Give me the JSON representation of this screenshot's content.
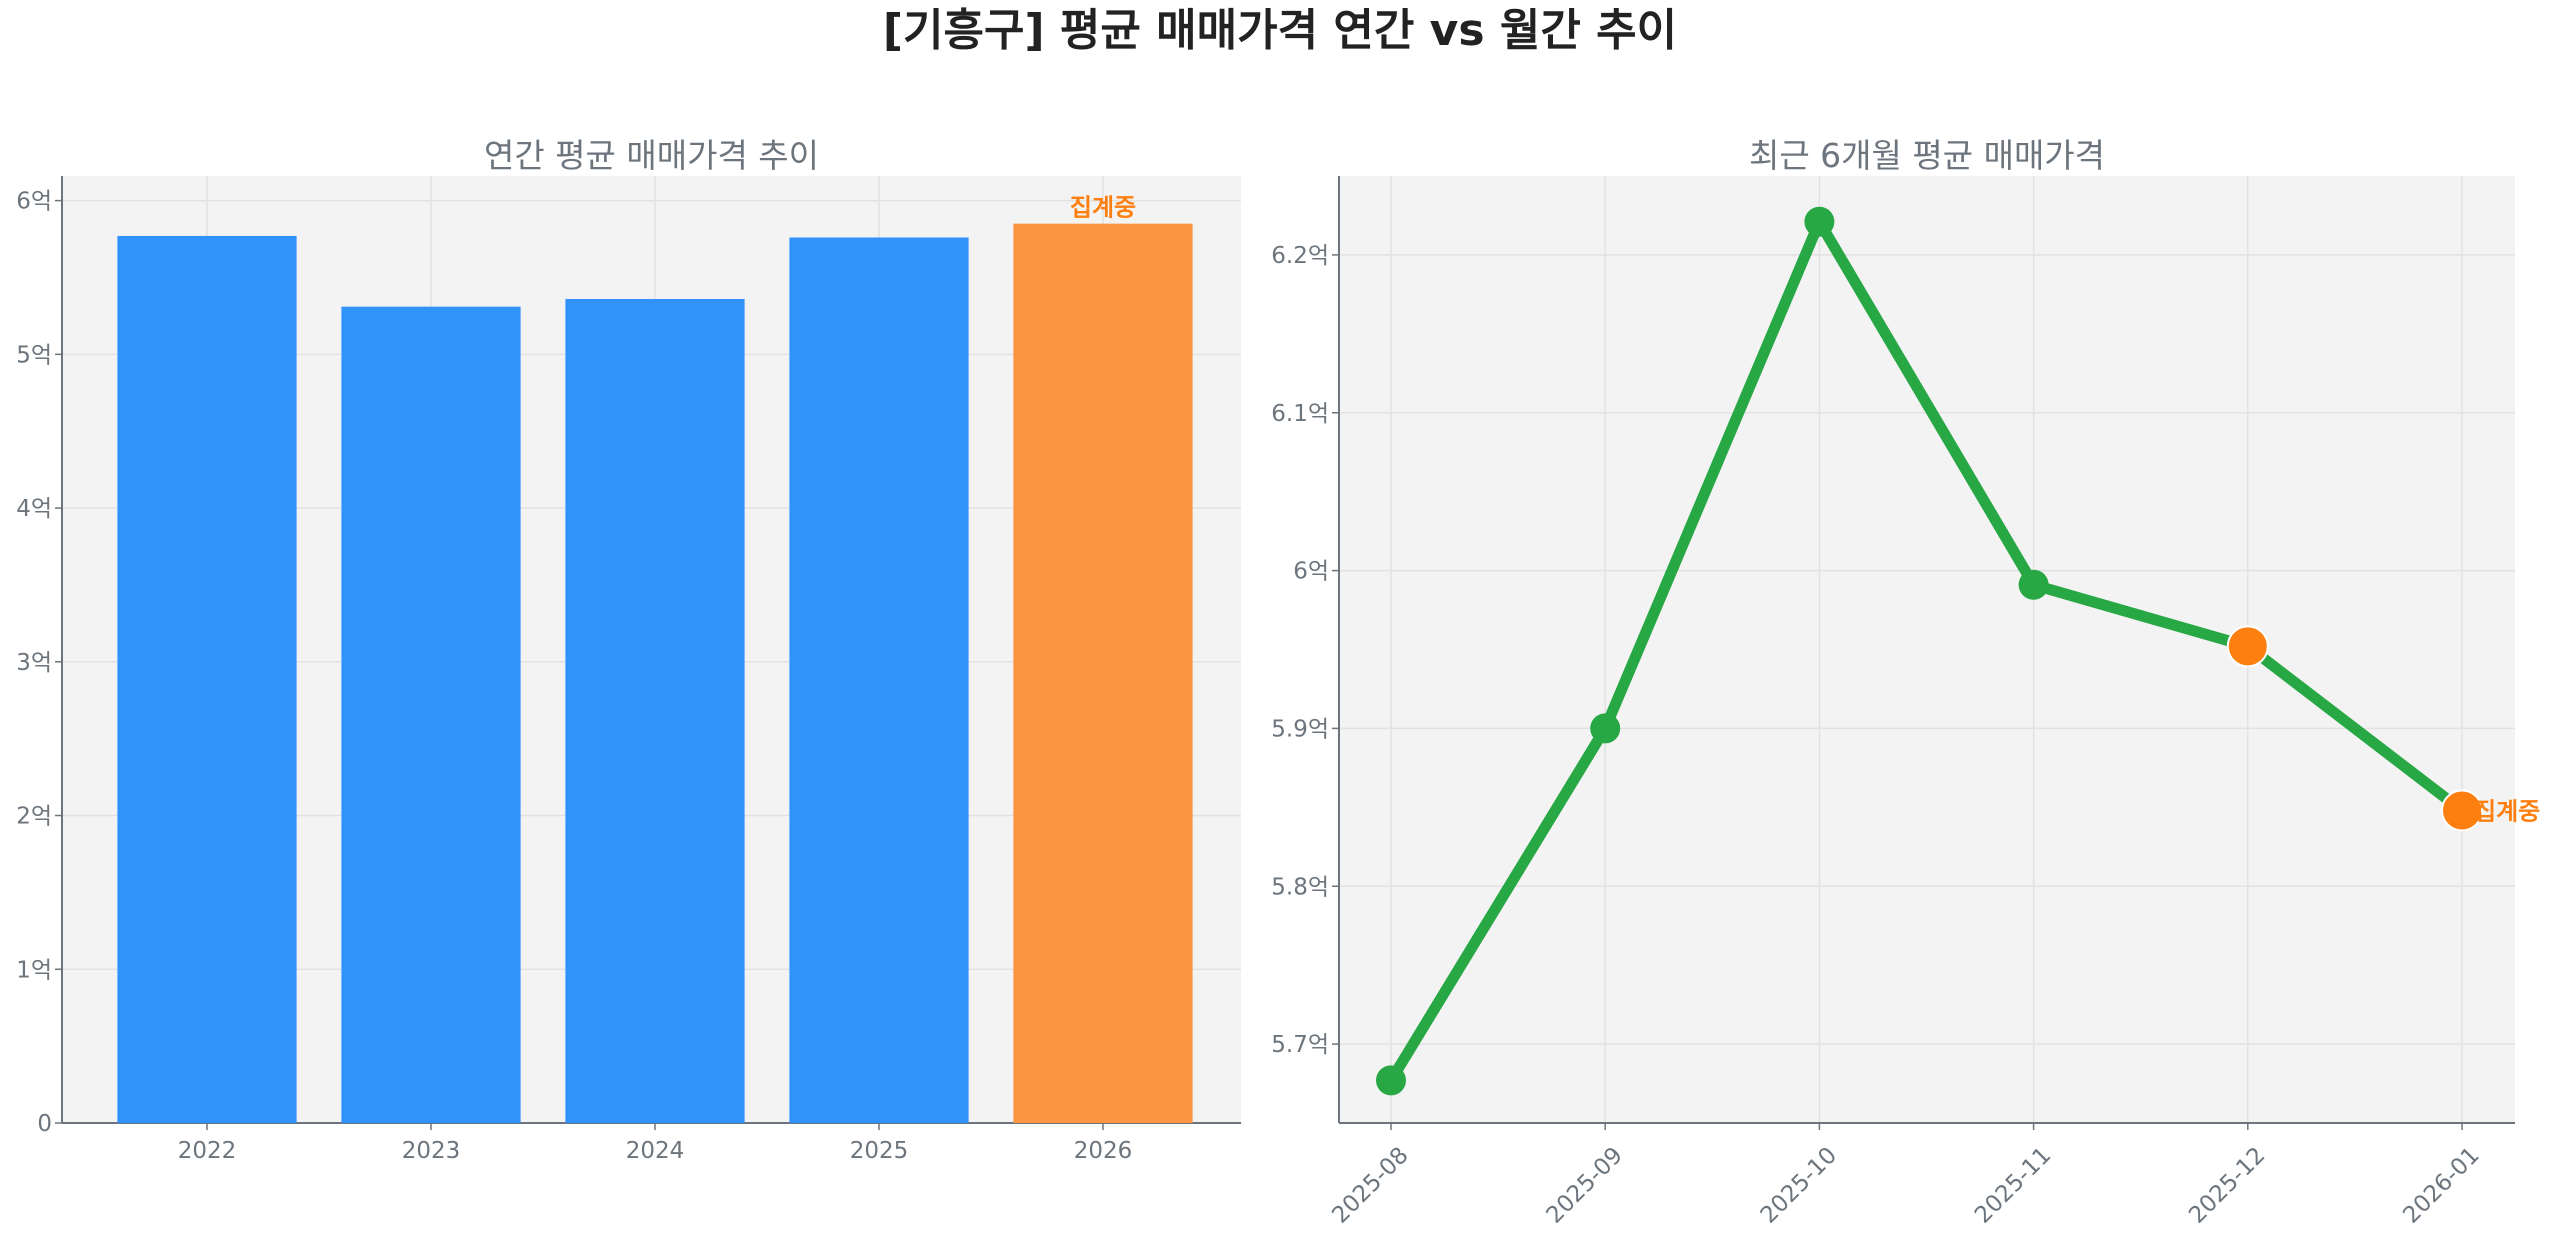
{
  "title": "[기흥구] 평균 매매가격 연간 vs 월간 추이",
  "colors": {
    "bar": "#3192fb",
    "bar_partial": "#f9963f",
    "line": "#28a745",
    "marker_partial": "#fd7f0f",
    "annotation": "#fd7f0f",
    "axes_bg": "#f3f3f3"
  },
  "chart_data": [
    {
      "type": "bar",
      "title": "연간 평균 매매가격 추이",
      "categories": [
        "2022",
        "2023",
        "2024",
        "2025",
        "2026"
      ],
      "values": [
        5.77,
        5.31,
        5.36,
        5.76,
        5.85
      ],
      "unit": "억",
      "highlight": {
        "category": "2026",
        "label": "집계중"
      },
      "yticks": [
        0,
        1,
        2,
        3,
        4,
        5,
        6
      ],
      "ytick_labels": [
        "0",
        "1억",
        "2억",
        "3억",
        "4억",
        "5억",
        "6억"
      ],
      "ylim": [
        0,
        6.16
      ],
      "grid": true
    },
    {
      "type": "line",
      "title": "최근 6개월 평균 매매가격",
      "categories": [
        "2025-08",
        "2025-09",
        "2025-10",
        "2025-11",
        "2025-12",
        "2026-01"
      ],
      "values": [
        5.677,
        5.9,
        6.221,
        5.991,
        5.952,
        5.848
      ],
      "unit": "억",
      "partial_points": [
        "2025-12",
        "2026-01"
      ],
      "annotation": {
        "category": "2026-01",
        "label": "집계중"
      },
      "yticks": [
        5.7,
        5.8,
        5.9,
        6.0,
        6.1,
        6.2
      ],
      "ytick_labels": [
        "5.7억",
        "5.8억",
        "5.9억",
        "6억",
        "6.1억",
        "6.2억"
      ],
      "ylim": [
        5.65,
        6.25
      ],
      "grid": true
    }
  ]
}
